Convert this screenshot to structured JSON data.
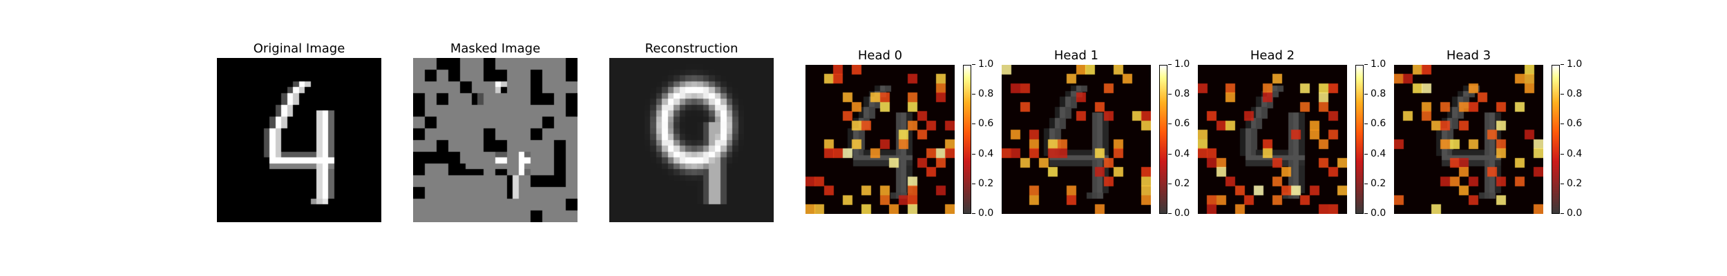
{
  "panels": [
    {
      "id": "original",
      "title": "Original Image"
    },
    {
      "id": "masked",
      "title": "Masked Image"
    },
    {
      "id": "reconstruction",
      "title": "Reconstruction"
    },
    {
      "id": "head0",
      "title": "Head 0"
    },
    {
      "id": "head1",
      "title": "Head 1"
    },
    {
      "id": "head2",
      "title": "Head 2"
    },
    {
      "id": "head3",
      "title": "Head 3"
    }
  ],
  "colorbar": {
    "ticks": [
      "0.0",
      "0.2",
      "0.4",
      "0.6",
      "0.8",
      "1.0"
    ],
    "range": [
      0.0,
      1.0
    ]
  }
}
